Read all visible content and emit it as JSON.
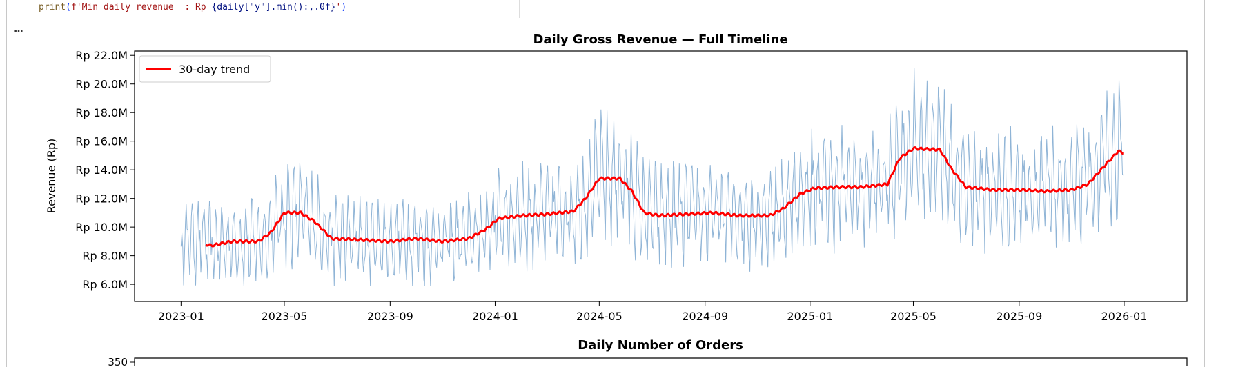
{
  "code_line": {
    "fn": "print",
    "str_prefix": "f'Min daily revenue  : Rp ",
    "expr": "{daily[\"y\"].min():,.0f}",
    "str_suffix": "'"
  },
  "output_toggle": "...",
  "colors": {
    "raw": "#8fb4d6",
    "trend": "#ff0000"
  },
  "chart_data": [
    {
      "type": "line",
      "title": "Daily Gross Revenue — Full Timeline",
      "xlabel": "",
      "ylabel": "Revenue (Rp)",
      "ylim": [
        4.8,
        22.3
      ],
      "y_unit": "million Rp",
      "yticks": [
        6,
        8,
        10,
        12,
        14,
        16,
        18,
        20,
        22
      ],
      "ytick_labels": [
        "Rp 6.0M",
        "Rp 8.0M",
        "Rp 10.0M",
        "Rp 12.0M",
        "Rp 14.0M",
        "Rp 16.0M",
        "Rp 18.0M",
        "Rp 20.0M",
        "Rp 22.0M"
      ],
      "xlim": [
        "2022-11-08",
        "2026-03-15"
      ],
      "xticks": [
        "2023-01-01",
        "2023-05-01",
        "2023-09-01",
        "2024-01-01",
        "2024-05-01",
        "2024-09-01",
        "2025-01-01",
        "2025-05-01",
        "2025-09-01",
        "2026-01-01"
      ],
      "xtick_labels": [
        "2023-01",
        "2023-05",
        "2023-09",
        "2024-01",
        "2024-05",
        "2024-09",
        "2025-01",
        "2025-05",
        "2025-09",
        "2026-01"
      ],
      "grid": false,
      "legend": {
        "position": "top-left",
        "entries": [
          "30-day trend"
        ]
      },
      "series": [
        {
          "name": "Daily revenue",
          "style": "thin blue line",
          "range": [
            "2023-01-01",
            "2025-12-31"
          ],
          "approx_daily_spread_fraction": 0.3,
          "approx_min": 5.6,
          "approx_max": 21.3
        },
        {
          "name": "30-day trend",
          "points": [
            [
              "2023-01-30",
              8.8
            ],
            [
              "2023-02-05",
              8.7
            ],
            [
              "2023-03-01",
              9.0
            ],
            [
              "2023-04-01",
              9.0
            ],
            [
              "2023-04-15",
              9.6
            ],
            [
              "2023-05-01",
              11.0
            ],
            [
              "2023-05-20",
              11.0
            ],
            [
              "2023-06-05",
              10.4
            ],
            [
              "2023-06-25",
              9.2
            ],
            [
              "2023-08-01",
              9.1
            ],
            [
              "2023-09-01",
              9.0
            ],
            [
              "2023-10-01",
              9.2
            ],
            [
              "2023-11-01",
              9.0
            ],
            [
              "2023-12-01",
              9.2
            ],
            [
              "2023-12-20",
              9.8
            ],
            [
              "2024-01-05",
              10.6
            ],
            [
              "2024-02-01",
              10.8
            ],
            [
              "2024-03-01",
              10.9
            ],
            [
              "2024-04-01",
              11.1
            ],
            [
              "2024-04-15",
              12.0
            ],
            [
              "2024-05-01",
              13.4
            ],
            [
              "2024-05-25",
              13.4
            ],
            [
              "2024-06-08",
              12.5
            ],
            [
              "2024-06-22",
              11.0
            ],
            [
              "2024-07-10",
              10.8
            ],
            [
              "2024-08-10",
              10.9
            ],
            [
              "2024-09-10",
              11.0
            ],
            [
              "2024-10-10",
              10.8
            ],
            [
              "2024-11-15",
              10.8
            ],
            [
              "2024-12-01",
              11.3
            ],
            [
              "2024-12-20",
              12.3
            ],
            [
              "2025-01-05",
              12.7
            ],
            [
              "2025-02-01",
              12.8
            ],
            [
              "2025-03-01",
              12.8
            ],
            [
              "2025-04-01",
              13.0
            ],
            [
              "2025-04-15",
              14.8
            ],
            [
              "2025-05-01",
              15.5
            ],
            [
              "2025-06-01",
              15.4
            ],
            [
              "2025-06-15",
              14.0
            ],
            [
              "2025-07-01",
              12.8
            ],
            [
              "2025-08-01",
              12.6
            ],
            [
              "2025-09-01",
              12.6
            ],
            [
              "2025-10-01",
              12.5
            ],
            [
              "2025-11-01",
              12.6
            ],
            [
              "2025-11-20",
              13.0
            ],
            [
              "2025-12-08",
              14.2
            ],
            [
              "2025-12-25",
              15.3
            ],
            [
              "2025-12-31",
              15.2
            ]
          ]
        }
      ]
    },
    {
      "type": "line",
      "title": "Daily Number of Orders",
      "ytick_labels": [
        "350"
      ]
    }
  ]
}
